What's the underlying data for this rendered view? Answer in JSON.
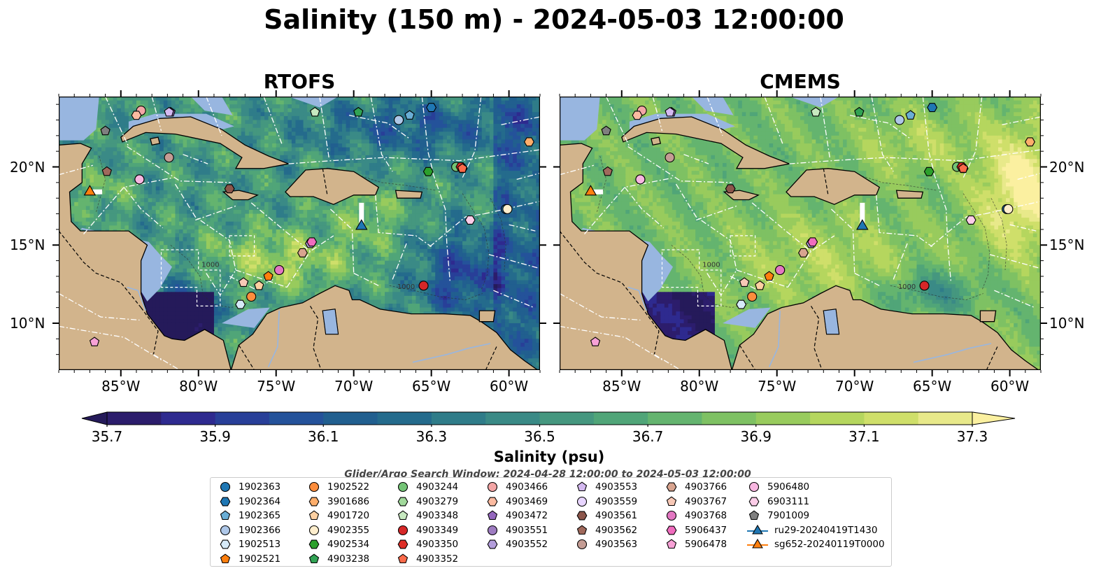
{
  "title": "Salinity (150 m) - 2024-05-03 12:00:00",
  "chart_data": {
    "type": "map",
    "variable": "Salinity",
    "depth": "150 m",
    "time": "2024-05-03 12:00:00",
    "panels": [
      {
        "title": "RTOFS",
        "field": "rtofs"
      },
      {
        "title": "CMEMS",
        "field": "cmems"
      }
    ],
    "lon_range": [
      -89,
      -58
    ],
    "lat_range": [
      7,
      24.5
    ],
    "x_ticks": [
      {
        "lon": -85,
        "label": "85°W"
      },
      {
        "lon": -80,
        "label": "80°W"
      },
      {
        "lon": -75,
        "label": "75°W"
      },
      {
        "lon": -70,
        "label": "70°W"
      },
      {
        "lon": -65,
        "label": "65°W"
      },
      {
        "lon": -60,
        "label": "60°W"
      }
    ],
    "y_ticks": [
      {
        "lat": 10,
        "label": "10°N"
      },
      {
        "lat": 15,
        "label": "15°N"
      },
      {
        "lat": 20,
        "label": "20°N"
      }
    ],
    "colorbar": {
      "label": "Salinity (psu)",
      "min": 35.7,
      "max": 37.3,
      "step": 0.1,
      "extend": "both",
      "tick_labels": [
        "35.7",
        "35.9",
        "36.1",
        "36.3",
        "36.5",
        "36.7",
        "36.9",
        "37.1",
        "37.3"
      ],
      "colors": [
        "#2c1d6c",
        "#2e2a8f",
        "#283f98",
        "#24529a",
        "#215f8f",
        "#246b8c",
        "#2f7c89",
        "#3a8a86",
        "#45977f",
        "#50a578",
        "#64b46f",
        "#7ec163",
        "#98cb5d",
        "#b5d65e",
        "#cfdf6a",
        "#e8e98a"
      ],
      "under_color": "#251a5a",
      "over_color": "#fbf0a0"
    },
    "colors": {
      "land": "#d2b48c",
      "shelf": "#98b6e0",
      "grid": "#ffffff"
    },
    "search_window": "Glider/Argo Search Window: 2024-04-28 12:00:00 to 2024-05-03 12:00:00",
    "floats": [
      {
        "id": "1902363",
        "marker": "circle",
        "color": "#1f77b4",
        "pos": [
          -60.2,
          17.3
        ]
      },
      {
        "id": "1902364",
        "marker": "hexagon",
        "color": "#1f77b4",
        "pos": [
          -65.0,
          23.8
        ]
      },
      {
        "id": "1902365",
        "marker": "pentagon",
        "color": "#6aaed6",
        "pos": [
          -66.4,
          23.3
        ]
      },
      {
        "id": "1902366",
        "marker": "circle",
        "color": "#aec7e8",
        "pos": [
          -67.1,
          23.0
        ]
      },
      {
        "id": "1902513",
        "marker": "hexagon",
        "color": "#d6eaf8",
        "pos": [
          -77.3,
          11.2
        ]
      },
      {
        "id": "1902521",
        "marker": "pentagon",
        "color": "#ff7f0e",
        "pos": [
          -75.5,
          13.0
        ]
      },
      {
        "id": "1902522",
        "marker": "circle",
        "color": "#fd8d3c",
        "pos": [
          -76.6,
          11.7
        ]
      },
      {
        "id": "3901686",
        "marker": "hexagon",
        "color": "#fdae6b",
        "pos": [
          -58.7,
          21.6
        ]
      },
      {
        "id": "4901720",
        "marker": "pentagon",
        "color": "#fdd0a2",
        "pos": [
          -76.1,
          12.4
        ]
      },
      {
        "id": "4902355",
        "marker": "circle",
        "color": "#feeecd",
        "pos": [
          -60.1,
          17.3
        ]
      },
      {
        "id": "4902534",
        "marker": "hexagon",
        "color": "#2ca02c",
        "pos": [
          -65.2,
          19.7
        ]
      },
      {
        "id": "4903238",
        "marker": "pentagon",
        "color": "#31a354",
        "pos": [
          -69.7,
          23.5
        ]
      },
      {
        "id": "4903244",
        "marker": "circle",
        "color": "#74c476",
        "pos": [
          -63.4,
          20.0
        ]
      },
      {
        "id": "4903279",
        "marker": "hexagon",
        "color": "#a1d99b",
        "pos": [
          -63.0,
          19.9
        ]
      },
      {
        "id": "4903348",
        "marker": "pentagon",
        "color": "#c7e9c0",
        "pos": [
          -72.5,
          23.5
        ]
      },
      {
        "id": "4903349",
        "marker": "circle",
        "color": "#d62728",
        "pos": [
          -65.5,
          12.4
        ]
      },
      {
        "id": "4903350",
        "marker": "hexagon",
        "color": "#de2d26",
        "pos": [
          -63.1,
          20.0
        ]
      },
      {
        "id": "4903352",
        "marker": "pentagon",
        "color": "#fb6a4a",
        "pos": [
          -63.0,
          19.9
        ]
      },
      {
        "id": "4903466",
        "marker": "circle",
        "color": "#f4a6a6",
        "pos": [
          -83.7,
          23.6
        ]
      },
      {
        "id": "4903469",
        "marker": "hexagon",
        "color": "#fcbba1",
        "pos": [
          -84.0,
          23.3
        ]
      },
      {
        "id": "4903472",
        "marker": "pentagon",
        "color": "#9467bd",
        "pos": [
          -81.8,
          23.5
        ]
      },
      {
        "id": "4903551",
        "marker": "circle",
        "color": "#9e7cc1",
        "pos": [
          -74.8,
          13.4
        ]
      },
      {
        "id": "4903552",
        "marker": "hexagon",
        "color": "#b39ddb",
        "pos": [
          -72.8,
          15.1
        ]
      },
      {
        "id": "4903553",
        "marker": "pentagon",
        "color": "#d4b9f0",
        "pos": [
          -81.9,
          23.5
        ]
      },
      {
        "id": "4903559",
        "marker": "circle",
        "color": "#e8d5ff",
        "pos": [
          -83.8,
          19.2
        ]
      },
      {
        "id": "4903561",
        "marker": "hexagon",
        "color": "#8c564b",
        "pos": [
          -78.0,
          18.6
        ]
      },
      {
        "id": "4903562",
        "marker": "pentagon",
        "color": "#a0695c",
        "pos": [
          -85.9,
          19.7
        ]
      },
      {
        "id": "4903563",
        "marker": "circle",
        "color": "#c49c94",
        "pos": [
          -81.9,
          20.6
        ]
      },
      {
        "id": "4903766",
        "marker": "hexagon",
        "color": "#d8a48f",
        "pos": [
          -73.3,
          14.5
        ]
      },
      {
        "id": "4903767",
        "marker": "pentagon",
        "color": "#f7c8b6",
        "pos": [
          -77.1,
          12.6
        ]
      },
      {
        "id": "4903768",
        "marker": "circle",
        "color": "#e377c2",
        "pos": [
          -74.8,
          13.4
        ]
      },
      {
        "id": "5906437",
        "marker": "hexagon",
        "color": "#f06cbe",
        "pos": [
          -72.7,
          15.2
        ]
      },
      {
        "id": "5906478",
        "marker": "pentagon",
        "color": "#f7a1d6",
        "pos": [
          -86.7,
          8.8
        ]
      },
      {
        "id": "5906480",
        "marker": "circle",
        "color": "#f7b6e0",
        "pos": [
          -83.8,
          19.2
        ]
      },
      {
        "id": "6903111",
        "marker": "hexagon",
        "color": "#fccde8",
        "pos": [
          -62.5,
          16.6
        ]
      },
      {
        "id": "7901009",
        "marker": "pentagon",
        "color": "#7f7f7f",
        "pos": [
          -86.0,
          22.3
        ]
      }
    ],
    "gliders": [
      {
        "id": "ru29-20240419T1430",
        "color": "#1f77b4",
        "track": [
          [
            -69.5,
            17.7
          ],
          [
            -69.5,
            16.2
          ]
        ]
      },
      {
        "id": "sg652-20240119T0000",
        "color": "#ff7f0e",
        "track": [
          [
            -86.2,
            18.4
          ],
          [
            -87.0,
            18.4
          ]
        ]
      }
    ],
    "legend_columns": [
      [
        "1902363",
        "1902364",
        "1902365",
        "1902366",
        "1902513",
        "1902521"
      ],
      [
        "1902522",
        "3901686",
        "4901720",
        "4902355",
        "4902534",
        "4903238"
      ],
      [
        "4903244",
        "4903279",
        "4903348",
        "4903349",
        "4903350",
        "4903352"
      ],
      [
        "4903466",
        "4903469",
        "4903472",
        "4903551",
        "4903552"
      ],
      [
        "4903553",
        "4903559",
        "4903561",
        "4903562",
        "4903563"
      ],
      [
        "4903766",
        "4903767",
        "4903768",
        "5906437",
        "5906478"
      ],
      [
        "5906480",
        "6903111",
        "7901009",
        "ru29-20240419T1430",
        "sg652-20240119T0000"
      ]
    ],
    "bathymetry_labels": [
      "1000",
      "1000"
    ]
  }
}
